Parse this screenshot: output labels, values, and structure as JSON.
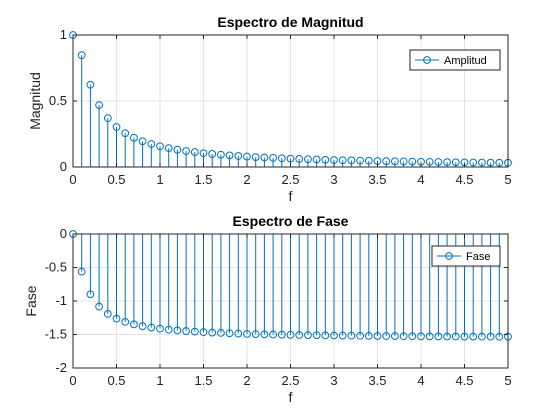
{
  "chart_data": [
    {
      "type": "stem",
      "title": "Espectro de Magnitud",
      "xlabel": "f",
      "ylabel": "Magnitud",
      "xlim": [
        0,
        5
      ],
      "ylim": [
        0,
        1
      ],
      "xticks": [
        "0",
        "0.5",
        "1",
        "1.5",
        "2",
        "2.5",
        "3",
        "3.5",
        "4",
        "4.5",
        "5"
      ],
      "yticks": [
        "0",
        "0.5",
        "1"
      ],
      "grid": true,
      "legend": {
        "entries": [
          "Amplitud"
        ],
        "placement": "top-right"
      },
      "series": [
        {
          "name": "Amplitud",
          "color": "#0072bd",
          "x": [
            0,
            0.1,
            0.2,
            0.3,
            0.4,
            0.5,
            0.6,
            0.7,
            0.8,
            0.9,
            1.0,
            1.1,
            1.2,
            1.3,
            1.4,
            1.5,
            1.6,
            1.7,
            1.8,
            1.9,
            2.0,
            2.1,
            2.2,
            2.3,
            2.4,
            2.5,
            2.6,
            2.7,
            2.8,
            2.9,
            3.0,
            3.1,
            3.2,
            3.3,
            3.4,
            3.5,
            3.6,
            3.7,
            3.8,
            3.9,
            4.0,
            4.1,
            4.2,
            4.3,
            4.4,
            4.5,
            4.6,
            4.7,
            4.8,
            4.9,
            5.0
          ],
          "values": [
            1.0,
            0.847,
            0.623,
            0.469,
            0.37,
            0.303,
            0.256,
            0.221,
            0.195,
            0.174,
            0.157,
            0.143,
            0.131,
            0.121,
            0.113,
            0.105,
            0.099,
            0.093,
            0.088,
            0.083,
            0.079,
            0.075,
            0.072,
            0.069,
            0.066,
            0.063,
            0.061,
            0.059,
            0.057,
            0.055,
            0.053,
            0.051,
            0.05,
            0.048,
            0.047,
            0.045,
            0.044,
            0.043,
            0.042,
            0.041,
            0.04,
            0.039,
            0.038,
            0.037,
            0.036,
            0.035,
            0.034,
            0.034,
            0.033,
            0.032,
            0.032
          ]
        }
      ]
    },
    {
      "type": "stem",
      "title": "Espectro de Fase",
      "xlabel": "f",
      "ylabel": "Fase",
      "xlim": [
        0,
        5
      ],
      "ylim": [
        -2,
        0
      ],
      "xticks": [
        "0",
        "0.5",
        "1",
        "1.5",
        "2",
        "2.5",
        "3",
        "3.5",
        "4",
        "4.5",
        "5"
      ],
      "yticks": [
        "-2",
        "-1.5",
        "-1",
        "-0.5",
        "0"
      ],
      "grid": true,
      "legend": {
        "entries": [
          "Fase"
        ],
        "placement": "top-right"
      },
      "series": [
        {
          "name": "Fase",
          "color": "#0072bd",
          "x": [
            0,
            0.1,
            0.2,
            0.3,
            0.4,
            0.5,
            0.6,
            0.7,
            0.8,
            0.9,
            1.0,
            1.1,
            1.2,
            1.3,
            1.4,
            1.5,
            1.6,
            1.7,
            1.8,
            1.9,
            2.0,
            2.1,
            2.2,
            2.3,
            2.4,
            2.5,
            2.6,
            2.7,
            2.8,
            2.9,
            3.0,
            3.1,
            3.2,
            3.3,
            3.4,
            3.5,
            3.6,
            3.7,
            3.8,
            3.9,
            4.0,
            4.1,
            4.2,
            4.3,
            4.4,
            4.5,
            4.6,
            4.7,
            4.8,
            4.9,
            5.0
          ],
          "values": [
            0,
            -0.561,
            -0.899,
            -1.083,
            -1.192,
            -1.263,
            -1.312,
            -1.348,
            -1.376,
            -1.397,
            -1.413,
            -1.428,
            -1.439,
            -1.449,
            -1.457,
            -1.465,
            -1.471,
            -1.476,
            -1.481,
            -1.486,
            -1.491,
            -1.494,
            -1.498,
            -1.5,
            -1.503,
            -1.505,
            -1.508,
            -1.509,
            -1.511,
            -1.513,
            -1.515,
            -1.516,
            -1.517,
            -1.519,
            -1.52,
            -1.522,
            -1.523,
            -1.524,
            -1.525,
            -1.526,
            -1.527,
            -1.528,
            -1.529,
            -1.53,
            -1.53,
            -1.531,
            -1.531,
            -1.532,
            -1.532,
            -1.533,
            -1.533
          ]
        }
      ]
    }
  ]
}
